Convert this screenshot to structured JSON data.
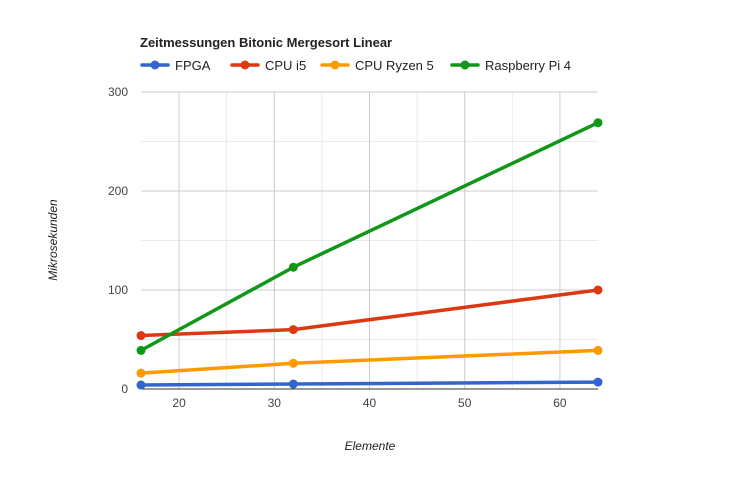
{
  "chart_data": {
    "type": "line",
    "title": "Zeitmessungen Bitonic Mergesort Linear",
    "xlabel": "Elemente",
    "ylabel": "Mikrosekunden",
    "x": [
      16,
      32,
      64
    ],
    "xlim": [
      16,
      64
    ],
    "ylim": [
      0,
      300
    ],
    "x_ticks": [
      20,
      30,
      40,
      50,
      60
    ],
    "y_ticks": [
      0,
      100,
      200,
      300
    ],
    "grid": true,
    "legend_position": "top-left",
    "series": [
      {
        "name": "FPGA",
        "color": "#3366cc",
        "values": [
          4,
          5,
          7
        ]
      },
      {
        "name": "CPU i5",
        "color": "#dc3912",
        "values": [
          54,
          60,
          100
        ]
      },
      {
        "name": "CPU Ryzen 5",
        "color": "#ff9900",
        "values": [
          16,
          26,
          39
        ]
      },
      {
        "name": "Raspberry Pi 4",
        "color": "#109618",
        "values": [
          39,
          123,
          269
        ]
      }
    ]
  }
}
